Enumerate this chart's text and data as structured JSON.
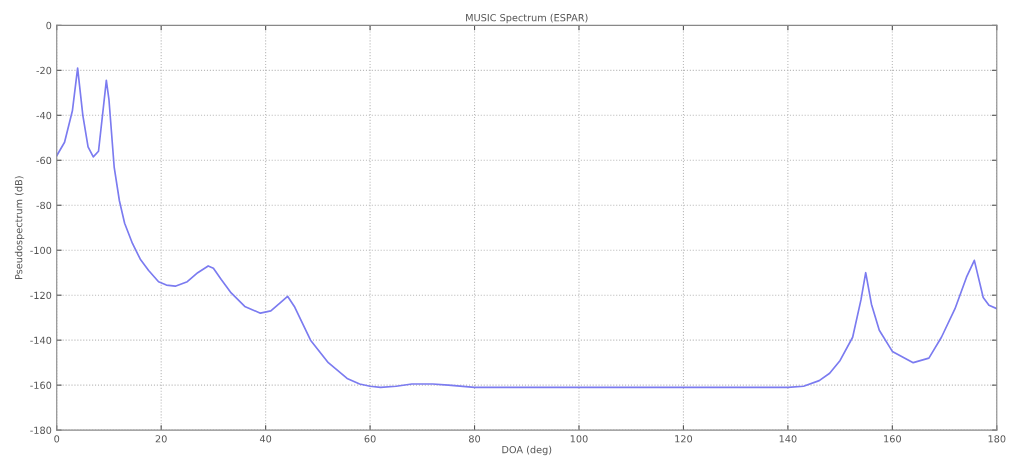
{
  "chart_data": {
    "type": "line",
    "title": "MUSIC Spectrum (ESPAR)",
    "xlabel": "DOA (deg)",
    "ylabel": "Pseudospectrum (dB)",
    "series": [
      {
        "color": "#7b7bf0",
        "x": [
          0,
          1.5,
          3,
          4,
          5,
          6,
          7,
          8,
          9,
          9.5,
          10,
          11,
          12,
          13,
          14.5,
          16,
          17.6,
          19.5,
          21,
          22.7,
          25,
          27,
          29,
          30,
          31.5,
          33.4,
          36,
          39,
          41,
          43,
          44.2,
          45.5,
          48.6,
          52,
          55.6,
          58,
          60,
          62,
          65,
          68,
          72,
          75,
          80,
          90,
          100,
          110,
          120,
          130,
          140,
          143,
          146,
          148,
          150,
          152.4,
          154,
          154.9,
          156,
          157.5,
          160,
          164,
          167,
          169.4,
          172,
          174.2,
          175.7,
          177.4,
          178.5,
          180
        ],
        "values": [
          -58,
          -52,
          -38,
          -19,
          -40,
          -54,
          -58.5,
          -56,
          -35,
          -24.5,
          -33,
          -63,
          -78,
          -88,
          -97,
          -104,
          -109,
          -114,
          -115.5,
          -116,
          -114,
          -110,
          -107,
          -108,
          -113,
          -119,
          -125,
          -128,
          -127,
          -123,
          -120.5,
          -125,
          -140,
          -150,
          -157,
          -159.5,
          -160.5,
          -161,
          -160.5,
          -159.5,
          -159.5,
          -160,
          -161,
          -161,
          -161,
          -161,
          -161,
          -161,
          -161,
          -160.5,
          -158,
          -154.7,
          -149,
          -138.7,
          -122,
          -110,
          -124,
          -135.6,
          -145,
          -150,
          -148,
          -138.7,
          -126,
          -112,
          -104.5,
          -121,
          -124.5,
          -126
        ]
      }
    ],
    "xlim": [
      0,
      180
    ],
    "xticks": [
      0,
      20,
      40,
      60,
      80,
      100,
      120,
      140,
      160,
      180
    ],
    "ylim": [
      -180,
      0
    ],
    "yticks": [
      -180,
      -160,
      -140,
      -120,
      -100,
      -80,
      -60,
      -40,
      -20,
      0
    ],
    "grid": true,
    "line_style": "solid"
  }
}
